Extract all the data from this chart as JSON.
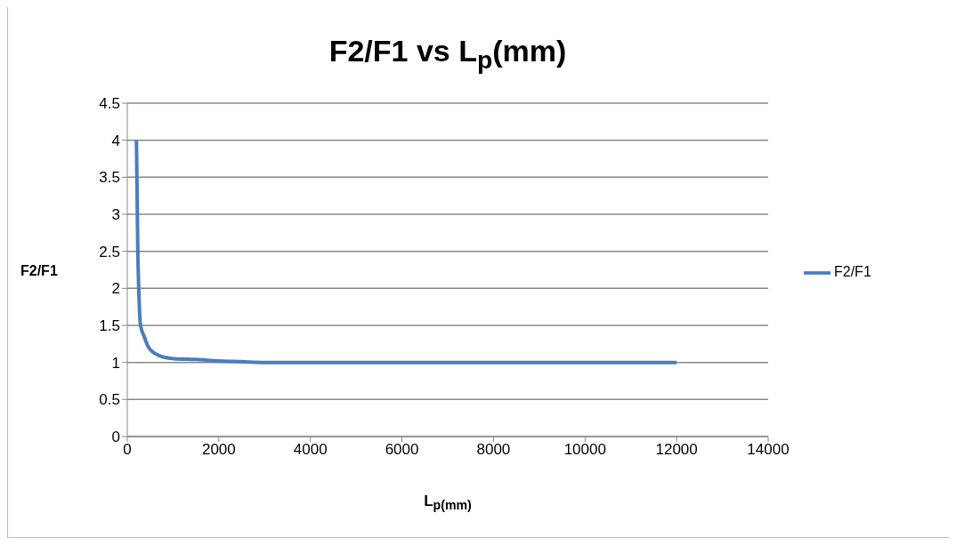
{
  "chart_data": {
    "type": "line",
    "title": "F2/F1 vs L$_{p}$(mm)",
    "xlabel": "L$_{p(mm)}$",
    "ylabel": "F2/F1",
    "series": [
      {
        "name": "F2/F1",
        "color": "#4a7ebb",
        "x": [
          200,
          210,
          230,
          250,
          290,
          370,
          450,
          540,
          700,
          1030,
          1500,
          2000,
          2500,
          3000,
          4000,
          6000,
          8000,
          10000,
          12000
        ],
        "values": [
          4,
          3.5,
          2.5,
          2,
          1.5,
          1.35,
          1.22,
          1.15,
          1.09,
          1.05,
          1.04,
          1.02,
          1.01,
          1,
          1,
          1,
          1,
          1,
          1
        ]
      }
    ],
    "xlim": [
      0,
      14000
    ],
    "xticks": [
      0,
      2000,
      4000,
      6000,
      8000,
      10000,
      12000,
      14000
    ],
    "ylim": [
      0,
      4.5
    ],
    "yticks": [
      0,
      0.5,
      1,
      1.5,
      2,
      2.5,
      3,
      3.5,
      4,
      4.5
    ],
    "grid": "y",
    "legend": "right",
    "marker": "none",
    "line_style": "solid"
  }
}
